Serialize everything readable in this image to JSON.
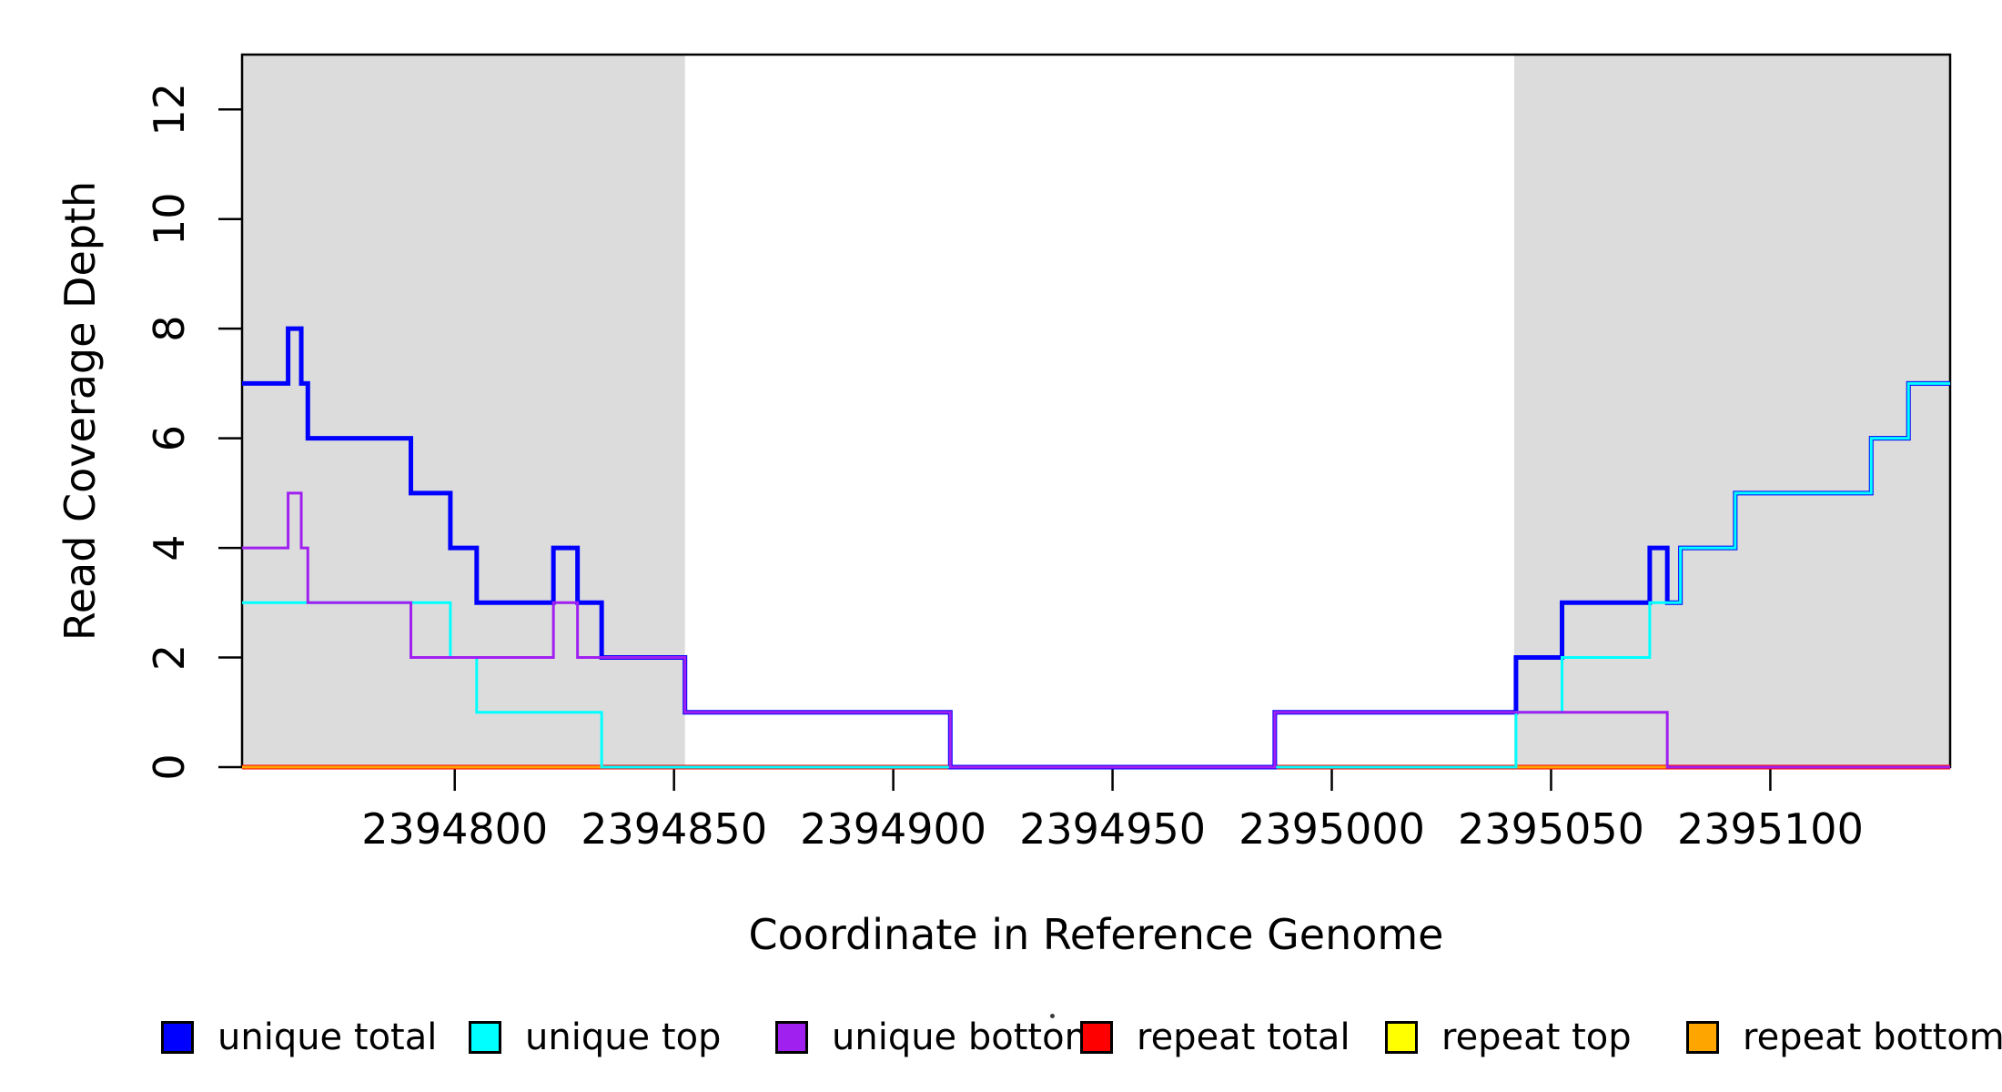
{
  "chart_data": {
    "type": "line",
    "subtype": "step-coverage",
    "title": "",
    "xlabel": "Coordinate in Reference Genome",
    "ylabel": "Read Coverage Depth",
    "xlim": [
      2394751.5,
      2395141
    ],
    "ylim": [
      0,
      13
    ],
    "x_ticks": [
      2394800,
      2394850,
      2394900,
      2394950,
      2395000,
      2395050,
      2395100
    ],
    "y_ticks": [
      0,
      2,
      4,
      6,
      8,
      10,
      12
    ],
    "grid": false,
    "legend_position": "bottom",
    "background_color": "#FFFFFF",
    "band_color": "#DCDCDC",
    "axis_color": "#000000",
    "shaded_regions": [
      {
        "name": "left-flank-band",
        "x0": 2394751.5,
        "x1": 2394852.5,
        "color": "#DCDCDC"
      },
      {
        "name": "right-flank-band",
        "x0": 2395041.6,
        "x1": 2395141.0,
        "color": "#DCDCDC"
      }
    ],
    "series": [
      {
        "name": "repeat total",
        "color": "#FF0000",
        "lwd": 5,
        "x_end": 2395141,
        "steps": [
          [
            2394751.5,
            0
          ]
        ]
      },
      {
        "name": "repeat top",
        "color": "#FFFF00",
        "lwd": 3,
        "x_end": 2395141,
        "steps": [
          [
            2394751.5,
            0
          ]
        ]
      },
      {
        "name": "repeat bottom",
        "color": "#FFA500",
        "lwd": 3,
        "x_end": 2395141,
        "steps": [
          [
            2394751.5,
            0
          ]
        ]
      },
      {
        "name": "unique total",
        "color": "#0000FF",
        "lwd": 5,
        "x_end": 2395141,
        "steps": [
          [
            2394751.5,
            7
          ],
          [
            2394762,
            8
          ],
          [
            2394765,
            7
          ],
          [
            2394766.5,
            6
          ],
          [
            2394790,
            5
          ],
          [
            2394799,
            4
          ],
          [
            2394805,
            3
          ],
          [
            2394822.5,
            4
          ],
          [
            2394828,
            3
          ],
          [
            2394833.5,
            2
          ],
          [
            2394852.5,
            1
          ],
          [
            2394913,
            0
          ],
          [
            2394987,
            1
          ],
          [
            2395042,
            2
          ],
          [
            2395052.5,
            3
          ],
          [
            2395072.5,
            4
          ],
          [
            2395076.5,
            3
          ],
          [
            2395079.5,
            4
          ],
          [
            2395092,
            5
          ],
          [
            2395123,
            6
          ],
          [
            2395131.5,
            7
          ]
        ]
      },
      {
        "name": "unique top",
        "color": "#00FFFF",
        "lwd": 3,
        "x_end": 2395141,
        "steps": [
          [
            2394751.5,
            3
          ],
          [
            2394799,
            2
          ],
          [
            2394805,
            1
          ],
          [
            2394833.5,
            0
          ],
          [
            2395042,
            1
          ],
          [
            2395052.5,
            2
          ],
          [
            2395072.5,
            3
          ],
          [
            2395079.5,
            4
          ],
          [
            2395092,
            5
          ],
          [
            2395123,
            6
          ],
          [
            2395131.5,
            7
          ]
        ]
      },
      {
        "name": "unique bottom",
        "color": "#A020F0",
        "lwd": 3,
        "x_end": 2395141,
        "steps": [
          [
            2394751.5,
            4
          ],
          [
            2394762,
            5
          ],
          [
            2394765,
            4
          ],
          [
            2394766.5,
            3
          ],
          [
            2394790,
            2
          ],
          [
            2394822.5,
            3
          ],
          [
            2394828,
            2
          ],
          [
            2394852.5,
            1
          ],
          [
            2394913,
            0
          ],
          [
            2394987,
            1
          ],
          [
            2395076.5,
            0
          ]
        ]
      }
    ]
  },
  "legend": {
    "items": [
      {
        "label": "unique total",
        "color": "#0000FF"
      },
      {
        "label": "unique top",
        "color": "#00FFFF"
      },
      {
        "label": "unique bottom",
        "color": "#A020F0"
      },
      {
        "label": "repeat total",
        "color": "#FF0000"
      },
      {
        "label": "repeat top",
        "color": "#FFFF00"
      },
      {
        "label": "repeat bottom",
        "color": "#FFA500"
      }
    ]
  }
}
